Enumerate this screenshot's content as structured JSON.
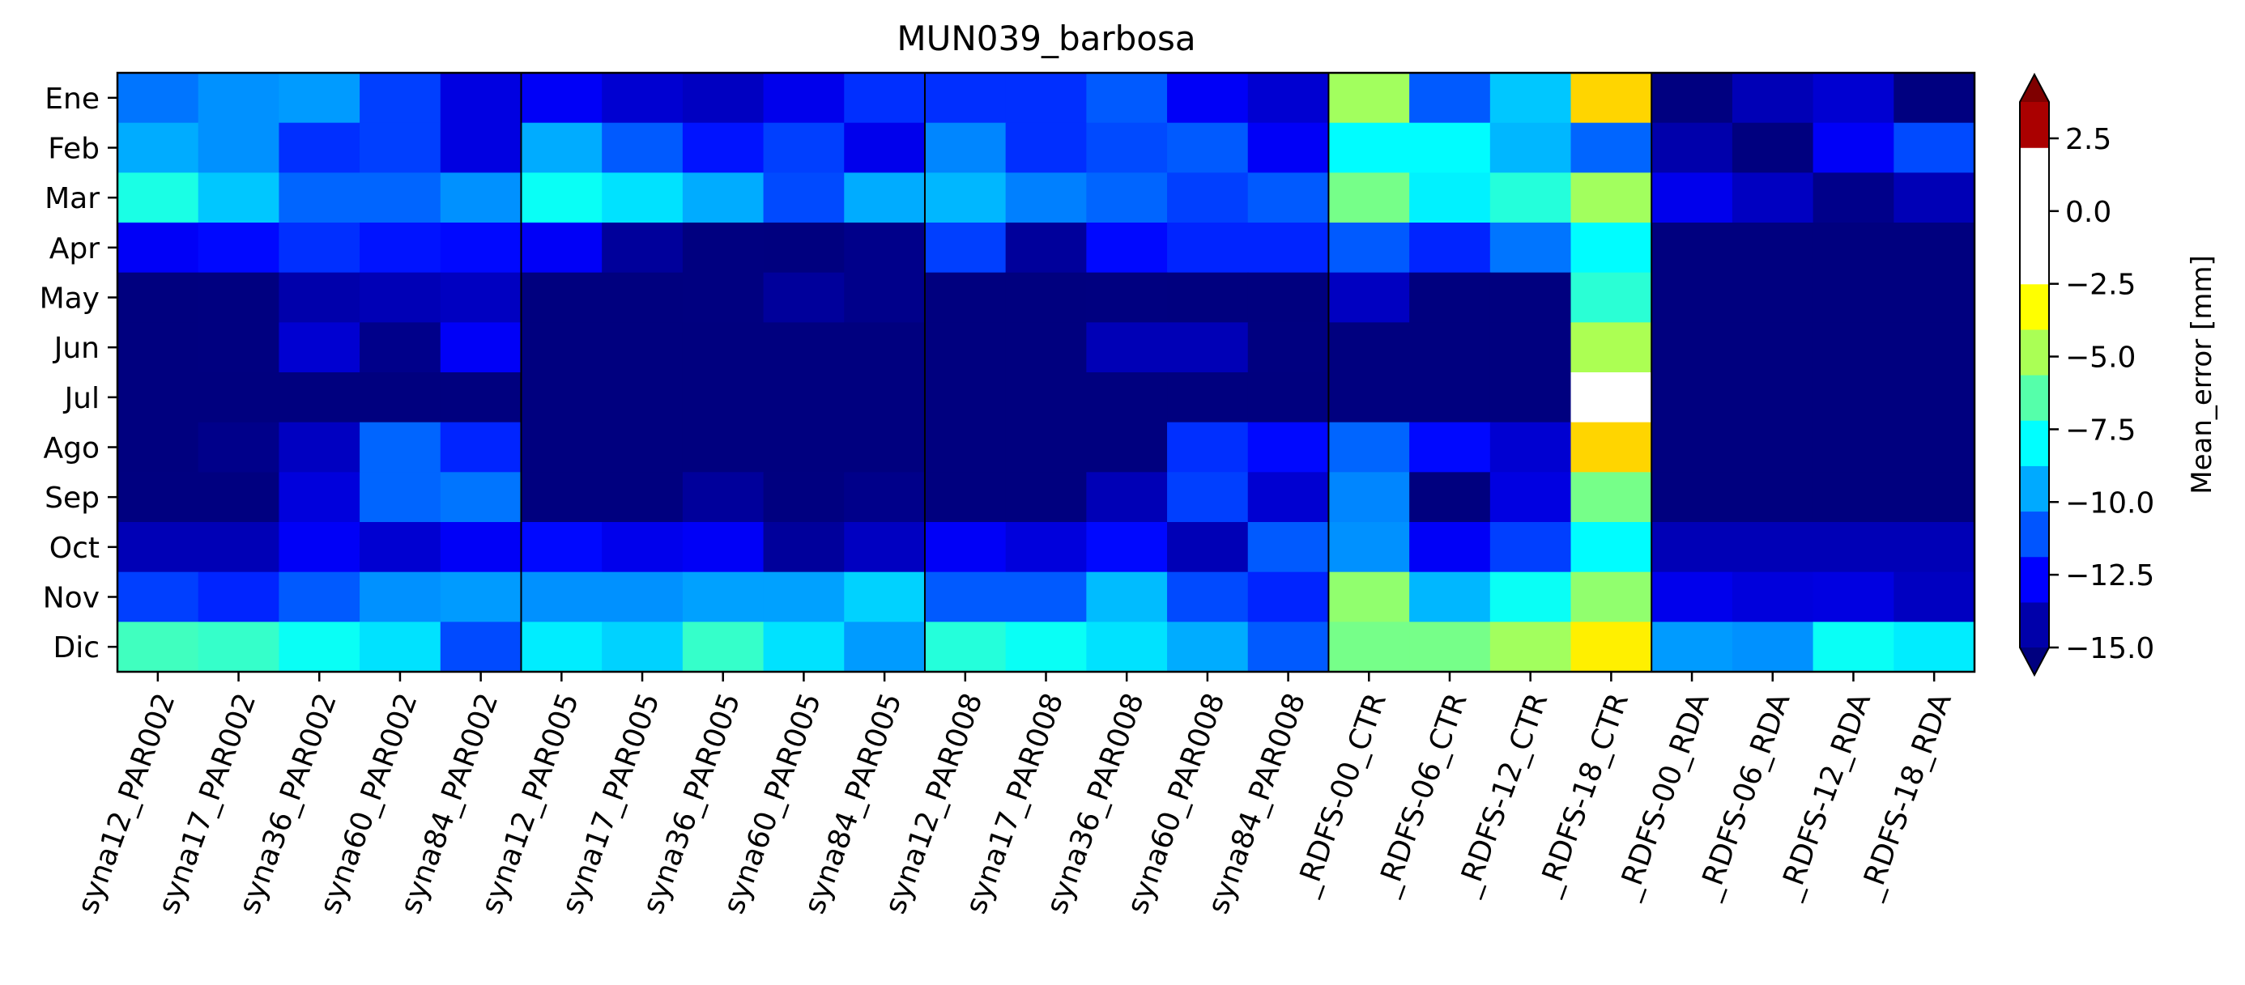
{
  "chart_data": {
    "type": "heatmap",
    "title": "MUN039_barbosa",
    "rows": [
      "Ene",
      "Feb",
      "Mar",
      "Apr",
      "May",
      "Jun",
      "Jul",
      "Ago",
      "Sep",
      "Oct",
      "Nov",
      "Dic"
    ],
    "columns": [
      "syna12_PAR002",
      "syna17_PAR002",
      "syna36_PAR002",
      "syna60_PAR002",
      "syna84_PAR002",
      "syna12_PAR005",
      "syna17_PAR005",
      "syna36_PAR005",
      "syna60_PAR005",
      "syna84_PAR005",
      "syna12_PAR008",
      "syna17_PAR008",
      "syna36_PAR008",
      "syna60_PAR008",
      "syna84_PAR008",
      "_RDFS-00_CTR",
      "_RDFS-06_CTR",
      "_RDFS-12_CTR",
      "_RDFS-18_CTR",
      "_RDFS-00_RDA",
      "_RDFS-06_RDA",
      "_RDFS-12_RDA",
      "_RDFS-18_RDA"
    ],
    "values": [
      [
        -10.5,
        -10.0,
        -9.8,
        -11.5,
        -13.2,
        -12.8,
        -13.5,
        -13.8,
        -13.0,
        -11.8,
        -11.8,
        -11.8,
        -11.0,
        -12.8,
        -13.5,
        -5.0,
        -11.0,
        -9.0,
        -2.5,
        -15.0,
        -14.0,
        -13.5,
        -15.0
      ],
      [
        -9.5,
        -10.0,
        -11.8,
        -11.5,
        -13.2,
        -9.5,
        -11.0,
        -12.3,
        -11.5,
        -13.0,
        -10.2,
        -11.8,
        -11.3,
        -11.0,
        -12.8,
        -8.0,
        -8.0,
        -9.3,
        -10.8,
        -14.2,
        -15.3,
        -12.8,
        -11.3
      ],
      [
        -7.5,
        -9.0,
        -10.8,
        -10.8,
        -10.0,
        -7.8,
        -8.5,
        -9.5,
        -11.3,
        -9.5,
        -9.3,
        -10.3,
        -10.8,
        -11.5,
        -11.0,
        -5.8,
        -8.2,
        -7.3,
        -5.0,
        -13.0,
        -13.8,
        -14.8,
        -14.0
      ],
      [
        -12.8,
        -12.5,
        -11.8,
        -12.3,
        -12.5,
        -12.8,
        -14.5,
        -15.0,
        -15.5,
        -14.8,
        -11.5,
        -14.5,
        -12.5,
        -12.0,
        -12.0,
        -11.0,
        -12.0,
        -10.5,
        -8.0,
        -15.5,
        -15.5,
        -15.5,
        -15.5
      ],
      [
        -15.5,
        -15.0,
        -14.2,
        -14.0,
        -13.8,
        -15.5,
        -15.5,
        -15.0,
        -14.5,
        -14.8,
        -15.3,
        -15.5,
        -15.0,
        -15.2,
        -15.5,
        -13.8,
        -15.5,
        -15.3,
        -7.2,
        -15.5,
        -15.5,
        -15.5,
        -15.5
      ],
      [
        -15.5,
        -15.0,
        -13.5,
        -14.8,
        -12.8,
        -15.5,
        -15.5,
        -15.3,
        -15.3,
        -15.3,
        -15.5,
        -15.3,
        -14.0,
        -14.0,
        -15.0,
        -15.3,
        -15.5,
        -15.5,
        -4.8,
        -15.5,
        -15.5,
        -15.5,
        -15.5
      ],
      [
        -15.5,
        -15.5,
        -15.5,
        -15.5,
        -15.5,
        -15.5,
        -15.5,
        -15.5,
        -15.5,
        -15.5,
        -15.5,
        -15.5,
        -15.5,
        -15.5,
        -15.5,
        -15.5,
        -15.5,
        -15.5,
        0.0,
        -15.5,
        -15.5,
        -15.5,
        -15.5
      ],
      [
        -15.5,
        -14.8,
        -13.8,
        -10.8,
        -12.0,
        -15.5,
        -15.5,
        -15.5,
        -15.5,
        -15.3,
        -15.5,
        -15.5,
        -15.3,
        -11.8,
        -12.5,
        -10.8,
        -12.5,
        -13.5,
        -2.5,
        -15.5,
        -15.5,
        -15.5,
        -15.5
      ],
      [
        -15.0,
        -15.0,
        -13.3,
        -10.8,
        -10.5,
        -15.5,
        -15.3,
        -14.5,
        -15.0,
        -14.8,
        -15.5,
        -15.3,
        -14.0,
        -11.5,
        -13.5,
        -10.2,
        -15.5,
        -13.2,
        -5.8,
        -15.5,
        -15.5,
        -15.5,
        -15.5
      ],
      [
        -14.0,
        -14.0,
        -12.8,
        -13.5,
        -12.8,
        -12.5,
        -13.0,
        -12.8,
        -14.5,
        -13.8,
        -12.8,
        -13.3,
        -12.5,
        -14.0,
        -11.0,
        -10.0,
        -12.8,
        -11.5,
        -8.0,
        -14.0,
        -14.0,
        -14.0,
        -14.0
      ],
      [
        -11.5,
        -12.0,
        -11.0,
        -10.0,
        -9.8,
        -10.0,
        -10.0,
        -9.7,
        -9.7,
        -8.8,
        -11.0,
        -11.0,
        -9.2,
        -11.3,
        -12.0,
        -5.3,
        -9.3,
        -7.8,
        -5.3,
        -13.0,
        -13.3,
        -13.2,
        -13.8
      ],
      [
        -6.8,
        -7.0,
        -7.8,
        -8.5,
        -11.3,
        -8.3,
        -8.8,
        -7.0,
        -8.5,
        -9.8,
        -7.3,
        -7.8,
        -8.5,
        -9.5,
        -11.0,
        -5.8,
        -5.8,
        -5.0,
        -3.0,
        -9.8,
        -10.0,
        -7.8,
        -8.3
      ]
    ],
    "group_boundaries_after_column": [
      5,
      10,
      15,
      19
    ],
    "colorbar": {
      "label": "Mean_error [mm]",
      "ticks": [
        "2.5",
        "0.0",
        "−2.5",
        "−5.0",
        "−7.5",
        "−10.0",
        "−12.5",
        "−15.0"
      ],
      "tick_values": [
        2.5,
        0.0,
        -2.5,
        -5.0,
        -7.5,
        -10.0,
        -12.5,
        -15.0
      ],
      "vmin": -15.0,
      "vmax": 3.75,
      "zero_band": [
        -1.875,
        1.875
      ],
      "extend": "both",
      "colormap": "jet",
      "zero_band_color": "#ffffff",
      "under_color": "#00007f",
      "over_color": "#7f0000"
    }
  }
}
